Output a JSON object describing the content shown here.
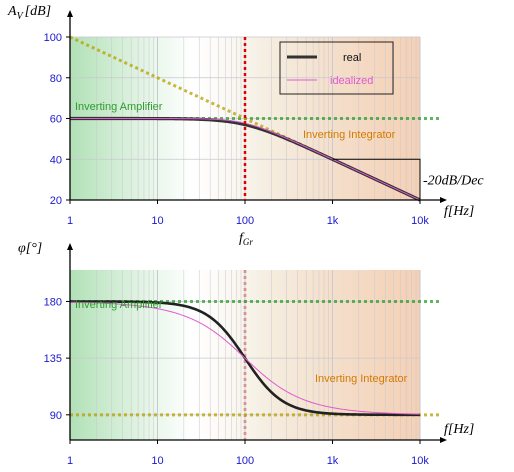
{
  "chart_data": [
    {
      "type": "line",
      "xscale": "log",
      "xlim": [
        1,
        10000
      ],
      "ylim": [
        20,
        100
      ],
      "yticks": [
        20,
        40,
        60,
        80,
        100
      ],
      "xticks": [
        {
          "value": 1,
          "label": "1"
        },
        {
          "value": 10,
          "label": "10"
        },
        {
          "value": 100,
          "label": "100"
        },
        {
          "value": 1000,
          "label": "1k"
        },
        {
          "value": 10000,
          "label": "10k"
        }
      ],
      "ylabel": "A_V [dB]",
      "ylabel_main": "A",
      "ylabel_sub": "V",
      "ylabel_unit": "[dB]",
      "xlabel": "f[Hz]",
      "grid": true,
      "legend": {
        "placement": "top-right",
        "entries": [
          {
            "name": "real",
            "color": "#333333"
          },
          {
            "name": "idealized",
            "color": "#e05ad0"
          }
        ]
      },
      "series": [
        {
          "name": "real",
          "color": "#333333",
          "model": "first-order lowpass",
          "gain_db": 60,
          "corner_hz": 100
        },
        {
          "name": "idealized",
          "color": "#e05ad0",
          "model": "asymptotes",
          "gain_db": 60,
          "corner_hz": 100
        }
      ],
      "reference_lines": [
        {
          "label": "Inverting Amplifier",
          "color": "#2e9d2e",
          "points": [
            [
              1,
              60
            ],
            [
              10000,
              60
            ]
          ]
        },
        {
          "label": "Inverting Integrator",
          "color": "#b8a000",
          "label_color": "#d47a00",
          "points": [
            [
              1,
              100
            ],
            [
              10000,
              20
            ]
          ]
        }
      ],
      "annotations": [
        {
          "text": "-20dB/Dec",
          "slope_box": [
            [
              1000,
              40
            ],
            [
              10000,
              20
            ]
          ]
        }
      ],
      "background_gradient": [
        "#1fa82e",
        "#e07a2e"
      ]
    },
    {
      "type": "line",
      "xscale": "log",
      "xlim": [
        1,
        10000
      ],
      "ylim": [
        70,
        205
      ],
      "yticks": [
        90,
        135,
        180
      ],
      "xticks": [
        {
          "value": 1,
          "label": "1"
        },
        {
          "value": 10,
          "label": "10"
        },
        {
          "value": 100,
          "label": "100"
        },
        {
          "value": 1000,
          "label": "1k"
        },
        {
          "value": 10000,
          "label": "10k"
        }
      ],
      "ylabel": "φ[°]",
      "xlabel": "f[Hz]",
      "grid": true,
      "series": [
        {
          "name": "real",
          "color": "#222222",
          "model": "phase 90 + 90/(1+(f/100)^2)",
          "corner_hz": 100
        },
        {
          "name": "idealized",
          "color": "#e05ad0",
          "model": "phase 90 + arctan-style",
          "corner_hz": 100
        }
      ],
      "reference_lines": [
        {
          "label": "Inverting Amplifier",
          "color": "#2e9d2e",
          "points": [
            [
              1,
              180
            ],
            [
              10000,
              180
            ]
          ]
        },
        {
          "label": "Inverting Integrator",
          "color": "#b8a000",
          "label_color": "#d47a00",
          "points": [
            [
              1,
              90
            ],
            [
              10000,
              90
            ]
          ]
        }
      ]
    }
  ],
  "markers": {
    "corner_frequency": {
      "value": 100,
      "label": "f",
      "label_sub": "Gr",
      "color": "#e00000"
    }
  },
  "colors": {
    "grid": "#c8c8d0",
    "tick_text": "#1a1ad0",
    "green": "#2e9d2e",
    "orange": "#d47a00",
    "olive": "#b8a000",
    "red": "#e00000"
  }
}
